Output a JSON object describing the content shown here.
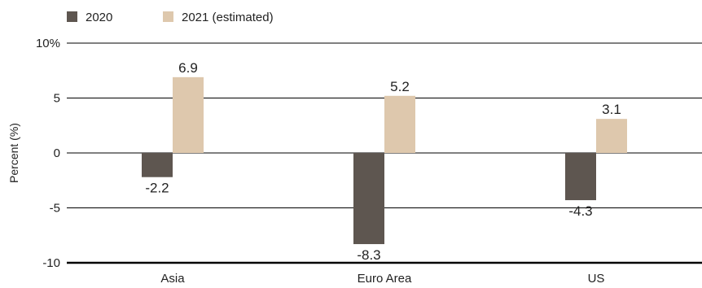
{
  "chart_data": {
    "type": "bar",
    "categories": [
      "Asia",
      "Euro Area",
      "US"
    ],
    "series": [
      {
        "name": "2020",
        "values": [
          -2.2,
          -8.3,
          -4.3
        ],
        "color": "#5e5650"
      },
      {
        "name": "2021 (estimated)",
        "values": [
          6.9,
          5.2,
          3.1
        ],
        "color": "#dec8ad"
      }
    ],
    "data_labels": [
      [
        "-2.2",
        "-8.3",
        "-4.3"
      ],
      [
        "6.9",
        "5.2",
        "3.1"
      ]
    ],
    "ylabel": "Percent (%)",
    "ylim": [
      -10,
      10
    ],
    "yticks": [
      10,
      5,
      0,
      -5,
      -10
    ],
    "ytick_labels": [
      "10%",
      "5",
      "0",
      "-5",
      "-10"
    ],
    "grid": "horizontal",
    "legend": "top-left"
  }
}
